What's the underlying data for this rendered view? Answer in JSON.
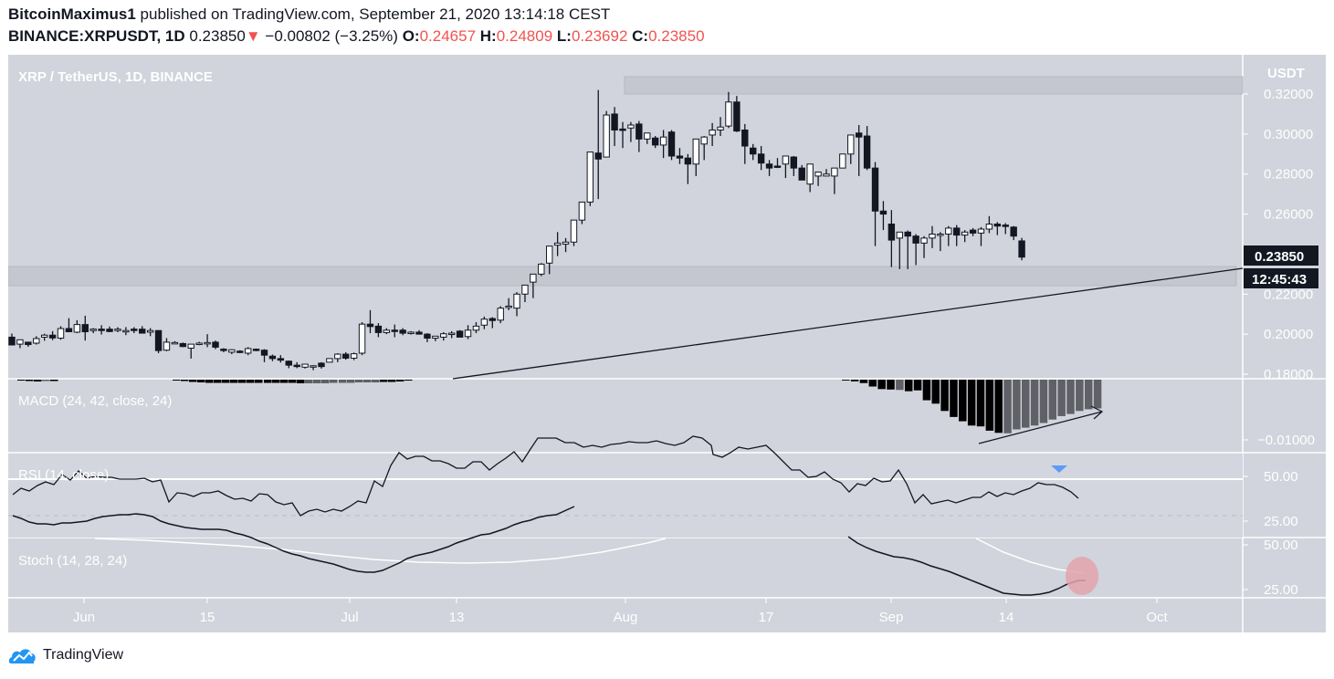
{
  "header": {
    "author": "BitcoinMaximus1",
    "published_text": "published on TradingView.com, September 21, 2020 13:14:18 CEST",
    "symbol": "BINANCE:XRPUSDT, 1D",
    "last_price": "0.23850",
    "change_arrow": "▼",
    "change": "−0.00802 (−3.25%)",
    "open_label": "O:",
    "open": "0.24657",
    "high_label": "H:",
    "high": "0.24809",
    "low_label": "L:",
    "low": "0.23692",
    "close_label": "C:",
    "close": "0.23850"
  },
  "main_pane": {
    "title": "XRP / TetherUS, 1D, BINANCE",
    "currency": "USDT",
    "price_tag": "0.23850",
    "countdown_tag": "12:45:43"
  },
  "indicators": {
    "macd_label": "MACD (24, 42, close, 24)",
    "rsi_label": "RSI (14, close)",
    "stoch_label": "Stoch (14, 28, 24)"
  },
  "footer": {
    "brand": "TradingView"
  },
  "colors": {
    "background": "#d1d4dc",
    "bull_body": "#ffffff",
    "bear_body": "#131722",
    "macd_dark": "#000000",
    "macd_light": "#606166",
    "rsi_marker": "#5b9cf6",
    "stoch_highlight": "#e3a3ab",
    "loss": "#ef5350",
    "brand_blue": "#2196f3"
  },
  "chart_data": [
    {
      "type": "candlestick",
      "title": "XRP / TetherUS, 1D, BINANCE",
      "ylabel": "USDT",
      "y_ticks": [
        0.18,
        0.2,
        0.22,
        0.24,
        0.26,
        0.28,
        0.3,
        0.32
      ],
      "y_tick_labels": [
        "0.18000",
        "0.20000",
        "0.22000",
        "0.26000",
        "0.28000",
        "0.30000",
        "0.32000"
      ],
      "x_tick_labels": [
        "Jun",
        "15",
        "Jul",
        "13",
        "Aug",
        "17",
        "Sep",
        "14",
        "Oct"
      ],
      "ylim": [
        0.175,
        0.327
      ],
      "last_close": 0.2385,
      "annotations": [
        {
          "type": "resistance_zone",
          "from": 0.3195,
          "to": 0.3235
        },
        {
          "type": "support_zone",
          "from": 0.2245,
          "to": 0.2345
        },
        {
          "type": "ascending_trendline",
          "start_date": "Jul 13",
          "start_price": 0.178,
          "end_date": "Oct 1",
          "end_price": 0.2343
        }
      ],
      "ohlc": [
        [
          0.1985,
          0.2003,
          0.1958,
          0.1946
        ],
        [
          0.195,
          0.1961,
          0.193,
          0.1972
        ],
        [
          0.196,
          0.1962,
          0.1937,
          0.1948
        ],
        [
          0.1955,
          0.199,
          0.1948,
          0.1978
        ],
        [
          0.1985,
          0.2002,
          0.1967,
          0.1995
        ],
        [
          0.1995,
          0.2015,
          0.197,
          0.1981
        ],
        [
          0.198,
          0.204,
          0.1972,
          0.2028
        ],
        [
          0.2028,
          0.208,
          0.201,
          0.2012
        ],
        [
          0.201,
          0.207,
          0.2005,
          0.2048
        ],
        [
          0.2048,
          0.2092,
          0.1968,
          0.2012
        ],
        [
          0.2018,
          0.203,
          0.2005,
          0.2025
        ],
        [
          0.2025,
          0.2045,
          0.1998,
          0.2018
        ],
        [
          0.2025,
          0.2038,
          0.201,
          0.2013
        ],
        [
          0.2018,
          0.2035,
          0.201,
          0.2025
        ],
        [
          0.2018,
          0.2035,
          0.1995,
          0.2018
        ],
        [
          0.2025,
          0.2035,
          0.2005,
          0.2018
        ],
        [
          0.2025,
          0.204,
          0.2012,
          0.2005
        ],
        [
          0.201,
          0.203,
          0.199,
          0.2018
        ],
        [
          0.2018,
          0.202,
          0.1905,
          0.1918
        ],
        [
          0.192,
          0.198,
          0.1915,
          0.196
        ],
        [
          0.1955,
          0.1965,
          0.195,
          0.1958
        ],
        [
          0.1953,
          0.1958,
          0.1935,
          0.1938
        ],
        [
          0.193,
          0.195,
          0.1878,
          0.195
        ],
        [
          0.1955,
          0.1962,
          0.1945,
          0.1955
        ],
        [
          0.1955,
          0.2,
          0.1935,
          0.1958
        ],
        [
          0.196,
          0.1968,
          0.1925,
          0.1935
        ],
        [
          0.1925,
          0.193,
          0.191,
          0.1918
        ],
        [
          0.191,
          0.1925,
          0.19,
          0.1922
        ],
        [
          0.1915,
          0.192,
          0.1905,
          0.191
        ],
        [
          0.1905,
          0.1935,
          0.1895,
          0.1928
        ],
        [
          0.1925,
          0.1928,
          0.1915,
          0.192
        ],
        [
          0.192,
          0.1925,
          0.186,
          0.1895
        ],
        [
          0.189,
          0.1898,
          0.1865,
          0.1878
        ],
        [
          0.1878,
          0.1895,
          0.1858,
          0.187
        ],
        [
          0.1865,
          0.1868,
          0.183,
          0.1845
        ],
        [
          0.1845,
          0.186,
          0.183,
          0.1838
        ],
        [
          0.1835,
          0.185,
          0.1828,
          0.185
        ],
        [
          0.184,
          0.1845,
          0.182,
          0.1842
        ],
        [
          0.1855,
          0.186,
          0.1828,
          0.1838
        ],
        [
          0.186,
          0.188,
          0.186,
          0.1878
        ],
        [
          0.1878,
          0.1905,
          0.186,
          0.19
        ],
        [
          0.19,
          0.191,
          0.1872,
          0.188
        ],
        [
          0.188,
          0.1908,
          0.187,
          0.1902
        ],
        [
          0.1905,
          0.206,
          0.1895,
          0.205
        ],
        [
          0.205,
          0.212,
          0.2005,
          0.2038
        ],
        [
          0.204,
          0.2055,
          0.1985,
          0.2008
        ],
        [
          0.2008,
          0.203,
          0.2,
          0.202
        ],
        [
          0.202,
          0.2048,
          0.1985,
          0.2018
        ],
        [
          0.202,
          0.203,
          0.1995,
          0.2005
        ],
        [
          0.2008,
          0.2015,
          0.1998,
          0.201
        ],
        [
          0.201,
          0.202,
          0.1998,
          0.2
        ],
        [
          0.2,
          0.2005,
          0.196,
          0.198
        ],
        [
          0.198,
          0.1988,
          0.1965,
          0.199
        ],
        [
          0.1985,
          0.201,
          0.1968,
          0.2002
        ],
        [
          0.2,
          0.2015,
          0.198,
          0.2005
        ],
        [
          0.2015,
          0.202,
          0.199,
          0.1985
        ],
        [
          0.1988,
          0.2045,
          0.1975,
          0.202
        ],
        [
          0.202,
          0.206,
          0.2005,
          0.204
        ],
        [
          0.2045,
          0.2088,
          0.2025,
          0.2075
        ],
        [
          0.2078,
          0.2085,
          0.203,
          0.2068
        ],
        [
          0.207,
          0.214,
          0.2055,
          0.213
        ],
        [
          0.2138,
          0.218,
          0.212,
          0.214
        ],
        [
          0.213,
          0.221,
          0.209,
          0.22
        ],
        [
          0.22,
          0.224,
          0.216,
          0.2245
        ],
        [
          0.226,
          0.228,
          0.218,
          0.23
        ],
        [
          0.23,
          0.2355,
          0.229,
          0.235
        ],
        [
          0.2355,
          0.238,
          0.23,
          0.244
        ],
        [
          0.2445,
          0.251,
          0.239,
          0.2455
        ],
        [
          0.245,
          0.248,
          0.241,
          0.246
        ],
        [
          0.246,
          0.249,
          0.244,
          0.257
        ],
        [
          0.257,
          0.2635,
          0.255,
          0.266
        ],
        [
          0.266,
          0.278,
          0.264,
          0.291
        ],
        [
          0.2905,
          0.322,
          0.2675,
          0.2875
        ],
        [
          0.2885,
          0.3115,
          0.2885,
          0.3095
        ],
        [
          0.31,
          0.3135,
          0.294,
          0.302
        ],
        [
          0.3025,
          0.306,
          0.293,
          0.302
        ],
        [
          0.303,
          0.306,
          0.296,
          0.3045
        ],
        [
          0.305,
          0.3065,
          0.291,
          0.2975
        ],
        [
          0.2975,
          0.3,
          0.295,
          0.3005
        ],
        [
          0.298,
          0.299,
          0.293,
          0.2945
        ],
        [
          0.2945,
          0.302,
          0.288,
          0.2985
        ],
        [
          0.301,
          0.302,
          0.287,
          0.289
        ],
        [
          0.289,
          0.293,
          0.285,
          0.288
        ],
        [
          0.288,
          0.29,
          0.275,
          0.285
        ],
        [
          0.285,
          0.2925,
          0.279,
          0.2975
        ],
        [
          0.295,
          0.299,
          0.287,
          0.2985
        ],
        [
          0.2995,
          0.3055,
          0.294,
          0.302
        ],
        [
          0.302,
          0.3085,
          0.299,
          0.3035
        ],
        [
          0.304,
          0.321,
          0.303,
          0.316
        ],
        [
          0.316,
          0.319,
          0.301,
          0.3015
        ],
        [
          0.302,
          0.305,
          0.285,
          0.294
        ],
        [
          0.293,
          0.295,
          0.287,
          0.29
        ],
        [
          0.29,
          0.294,
          0.282,
          0.2855
        ],
        [
          0.285,
          0.287,
          0.279,
          0.283
        ],
        [
          0.284,
          0.288,
          0.283,
          0.2835
        ],
        [
          0.285,
          0.287,
          0.278,
          0.289
        ],
        [
          0.2885,
          0.289,
          0.279,
          0.283
        ],
        [
          0.283,
          0.2845,
          0.278,
          0.277
        ],
        [
          0.275,
          0.2805,
          0.271,
          0.285
        ],
        [
          0.279,
          0.28,
          0.274,
          0.281
        ],
        [
          0.279,
          0.2825,
          0.279,
          0.28
        ],
        [
          0.279,
          0.281,
          0.27,
          0.283
        ],
        [
          0.283,
          0.288,
          0.283,
          0.29
        ],
        [
          0.29,
          0.293,
          0.285,
          0.2995
        ],
        [
          0.3005,
          0.3045,
          0.279,
          0.2985
        ],
        [
          0.299,
          0.304,
          0.282,
          0.283
        ],
        [
          0.283,
          0.286,
          0.244,
          0.2615
        ],
        [
          0.2615,
          0.2665,
          0.252,
          0.26
        ],
        [
          0.255,
          0.262,
          0.2335,
          0.247
        ],
        [
          0.248,
          0.25,
          0.2325,
          0.251
        ],
        [
          0.251,
          0.2518,
          0.2325,
          0.249
        ],
        [
          0.249,
          0.25,
          0.2345,
          0.2455
        ],
        [
          0.2455,
          0.249,
          0.238,
          0.248
        ],
        [
          0.248,
          0.254,
          0.243,
          0.25
        ],
        [
          0.25,
          0.251,
          0.2415,
          0.25
        ],
        [
          0.25,
          0.254,
          0.244,
          0.253
        ],
        [
          0.253,
          0.2545,
          0.244,
          0.2495
        ],
        [
          0.2495,
          0.252,
          0.246,
          0.251
        ],
        [
          0.252,
          0.253,
          0.249,
          0.2505
        ],
        [
          0.2505,
          0.2535,
          0.244,
          0.2525
        ],
        [
          0.2525,
          0.259,
          0.2505,
          0.255
        ],
        [
          0.255,
          0.256,
          0.2495,
          0.254
        ],
        [
          0.2545,
          0.2555,
          0.25,
          0.254
        ],
        [
          0.2535,
          0.254,
          0.247,
          0.249
        ],
        [
          0.2466,
          0.2481,
          0.2369,
          0.2385
        ]
      ]
    },
    {
      "type": "histogram",
      "title": "MACD (24, 42, close, 24)",
      "y_ticks": [
        -0.01
      ],
      "y_tick_labels": [
        "−0.01000"
      ],
      "note": "Histogram below zero; bars deepen to about −0.0125 around Sep 9 then contract (lighter gray) toward −0.007 by Sep 21; annotated with upward arrow",
      "values": [
        -0.0002,
        -0.0004,
        -0.0008,
        -0.0016,
        -0.0022,
        -0.0023,
        -0.0024,
        -0.0027,
        -0.0025,
        -0.0048,
        -0.0056,
        -0.0073,
        -0.0087,
        -0.0097,
        -0.0107,
        -0.0109,
        -0.0119,
        -0.0124,
        -0.0125,
        -0.0116,
        -0.0112,
        -0.0107,
        -0.0101,
        -0.0093,
        -0.0085,
        -0.008,
        -0.0073,
        -0.0069,
        -0.0067
      ]
    },
    {
      "type": "line",
      "title": "RSI (14, close)",
      "y_ticks": [
        25,
        50
      ],
      "y_tick_labels": [
        "25.00",
        "50.00"
      ],
      "ylim": [
        10,
        65
      ],
      "annotations": [
        {
          "type": "marker",
          "shape": "triangle-down",
          "color": "#5b9cf6",
          "near": "Sep 17"
        }
      ],
      "last_value": 42
    },
    {
      "type": "line",
      "title": "Stoch (14, 28, 24)",
      "y_ticks": [
        25,
        50
      ],
      "y_tick_labels": [
        "25.00",
        "50.00"
      ],
      "series": [
        {
          "name": "%K",
          "color": "#000000"
        },
        {
          "name": "%D",
          "color": "#ffffff"
        }
      ],
      "annotations": [
        {
          "type": "highlight-ellipse",
          "color": "#e3a3ab",
          "near": "Sep 21",
          "note": "%K turning up toward %D near 32"
        }
      ]
    }
  ]
}
